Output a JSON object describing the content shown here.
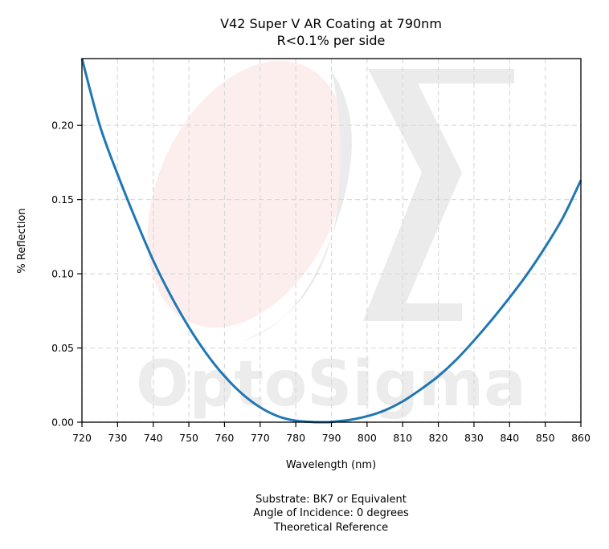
{
  "chart_data": {
    "type": "line",
    "title": "V42 Super V AR Coating at 790nm",
    "subtitle": "R<0.1% per side",
    "xlabel": "Wavelength (nm)",
    "ylabel": "% Reflection",
    "xlim": [
      720,
      860
    ],
    "ylim": [
      0,
      0.245
    ],
    "xticks": [
      720,
      730,
      740,
      750,
      760,
      770,
      780,
      790,
      800,
      810,
      820,
      830,
      840,
      850,
      860
    ],
    "xtick_labels": [
      "720",
      "730",
      "740",
      "750",
      "760",
      "770",
      "780",
      "790",
      "800",
      "810",
      "820",
      "830",
      "840",
      "850",
      "860"
    ],
    "yticks": [
      0,
      0.05,
      0.1,
      0.15,
      0.2
    ],
    "ytick_labels": [
      "0.00",
      "0.05",
      "0.10",
      "0.15",
      "0.20"
    ],
    "grid": true,
    "series": [
      {
        "color": "#1f77b4",
        "x": [
          720,
          725,
          730,
          735,
          740,
          745,
          750,
          755,
          760,
          765,
          770,
          775,
          780,
          785,
          789,
          790,
          795,
          800,
          805,
          810,
          815,
          820,
          825,
          830,
          835,
          840,
          845,
          850,
          855,
          860
        ],
        "y": [
          0.245,
          0.2,
          0.167,
          0.137,
          0.109,
          0.085,
          0.064,
          0.046,
          0.031,
          0.019,
          0.01,
          0.004,
          0.001,
          0.0001,
          0.0,
          0.0002,
          0.0015,
          0.004,
          0.008,
          0.014,
          0.022,
          0.031,
          0.042,
          0.055,
          0.069,
          0.084,
          0.1,
          0.118,
          0.138,
          0.163
        ]
      }
    ],
    "footer": [
      "Substrate: BK7 or Equivalent",
      "Angle of Incidence: 0 degrees",
      "Theoretical Reference"
    ]
  },
  "watermark": {
    "logo_name": "optosigma-logo",
    "text": "OptoSigma",
    "text_color": "#ececec",
    "sigma_color": "#ebebeb",
    "ellipse_color": "#fdeeee"
  }
}
